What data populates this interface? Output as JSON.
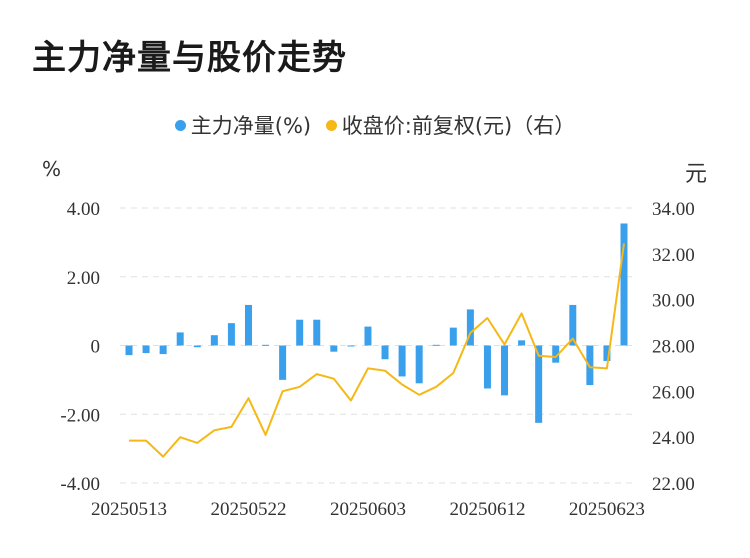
{
  "title": "主力净量与股价走势",
  "legend": {
    "net": "主力净量(%)",
    "price": "收盘价:前复权(元)（右）"
  },
  "units": {
    "left": "%",
    "right": "元"
  },
  "colors": {
    "bar": "#3aa0ec",
    "line": "#f5b817",
    "grid": "#e0e0e0",
    "text": "#333333"
  },
  "chart_data": {
    "type": "bar+line",
    "x_tick_labels": [
      "20250513",
      "20250522",
      "20250603",
      "20250612",
      "20250623"
    ],
    "y_left_ticks": [
      "4.00",
      "2.00",
      "0",
      "-2.00",
      "-4.00"
    ],
    "y_right_ticks": [
      "34.00",
      "32.00",
      "30.00",
      "28.00",
      "26.00",
      "24.00",
      "22.00"
    ],
    "y_left_range": [
      -4,
      4
    ],
    "y_right_range": [
      22,
      34
    ],
    "grid": true,
    "legend_position": "top",
    "series": [
      {
        "name": "主力净量(%)",
        "type": "bar",
        "axis": "left",
        "values": [
          -0.28,
          -0.22,
          -0.25,
          0.38,
          -0.05,
          0.3,
          0.65,
          1.18,
          0.02,
          -1.0,
          0.75,
          0.75,
          -0.18,
          -0.02,
          0.55,
          -0.4,
          -0.9,
          -1.1,
          0.02,
          0.52,
          1.05,
          -1.25,
          -1.45,
          0.15,
          -2.25,
          -0.5,
          1.18,
          -1.15,
          -0.45,
          3.55
        ]
      },
      {
        "name": "收盘价:前复权(元)（右）",
        "type": "line",
        "axis": "right",
        "values": [
          23.85,
          23.85,
          23.15,
          24.0,
          23.75,
          24.3,
          24.45,
          25.7,
          24.1,
          26.0,
          26.2,
          26.75,
          26.55,
          25.6,
          27.0,
          26.9,
          26.3,
          25.85,
          26.2,
          26.8,
          28.55,
          29.2,
          28.05,
          29.4,
          27.55,
          27.5,
          28.3,
          27.05,
          27.0,
          32.45
        ]
      }
    ]
  }
}
